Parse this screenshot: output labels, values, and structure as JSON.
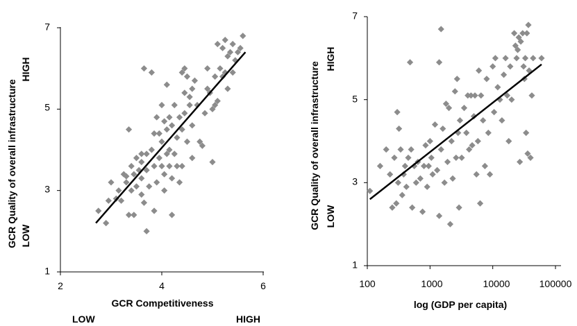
{
  "chart_data": [
    {
      "type": "scatter",
      "xlabel": "GCR Competitiveness",
      "xlabel_low": "LOW",
      "xlabel_high": "HIGH",
      "ylabel": "GCR Quality of overall infrastructure",
      "ylabel_low": "LOW",
      "ylabel_high": "HIGH",
      "xlim": [
        2,
        6
      ],
      "ylim": [
        1,
        7
      ],
      "xticks": [
        "2",
        "4",
        "6"
      ],
      "yticks": [
        "1",
        "3",
        "5",
        "7"
      ],
      "grid": false,
      "marker_color": "#8c8c8c",
      "trendline": {
        "x": [
          2.7,
          5.65
        ],
        "y": [
          2.2,
          6.4
        ]
      },
      "points": [
        [
          2.75,
          2.5
        ],
        [
          2.9,
          2.2
        ],
        [
          2.95,
          2.75
        ],
        [
          3.0,
          3.2
        ],
        [
          3.1,
          2.8
        ],
        [
          3.15,
          3.0
        ],
        [
          3.2,
          2.75
        ],
        [
          3.25,
          3.4
        ],
        [
          3.3,
          3.2
        ],
        [
          3.3,
          3.35
        ],
        [
          3.35,
          2.4
        ],
        [
          3.35,
          4.5
        ],
        [
          3.4,
          3.0
        ],
        [
          3.4,
          3.6
        ],
        [
          3.45,
          2.4
        ],
        [
          3.45,
          3.4
        ],
        [
          3.5,
          3.1
        ],
        [
          3.5,
          3.8
        ],
        [
          3.55,
          3.5
        ],
        [
          3.6,
          3.3
        ],
        [
          3.6,
          3.7
        ],
        [
          3.6,
          2.9
        ],
        [
          3.65,
          6.0
        ],
        [
          3.65,
          2.7
        ],
        [
          3.7,
          2.0
        ],
        [
          3.7,
          3.9
        ],
        [
          3.7,
          3.5
        ],
        [
          3.75,
          3.1
        ],
        [
          3.8,
          5.9
        ],
        [
          3.8,
          4.0
        ],
        [
          3.85,
          2.5
        ],
        [
          3.85,
          4.4
        ],
        [
          3.85,
          3.6
        ],
        [
          3.9,
          3.2
        ],
        [
          3.9,
          4.8
        ],
        [
          3.95,
          3.8
        ],
        [
          4.0,
          5.1
        ],
        [
          4.0,
          3.6
        ],
        [
          4.0,
          4.2
        ],
        [
          4.05,
          4.7
        ],
        [
          4.05,
          3.0
        ],
        [
          4.1,
          4.5
        ],
        [
          4.1,
          3.9
        ],
        [
          4.1,
          5.6
        ],
        [
          4.15,
          3.6
        ],
        [
          4.15,
          4.0
        ],
        [
          4.2,
          2.4
        ],
        [
          4.2,
          3.3
        ],
        [
          4.2,
          4.6
        ],
        [
          4.25,
          5.1
        ],
        [
          4.25,
          3.9
        ],
        [
          4.3,
          3.6
        ],
        [
          4.3,
          4.3
        ],
        [
          4.35,
          4.8
        ],
        [
          4.35,
          3.2
        ],
        [
          4.4,
          4.5
        ],
        [
          4.4,
          5.9
        ],
        [
          4.4,
          3.6
        ],
        [
          4.45,
          6.0
        ],
        [
          4.45,
          4.9
        ],
        [
          4.5,
          5.8
        ],
        [
          4.5,
          4.2
        ],
        [
          4.55,
          5.3
        ],
        [
          4.55,
          5.1
        ],
        [
          4.6,
          5.5
        ],
        [
          4.6,
          3.8
        ],
        [
          4.65,
          5.7
        ],
        [
          4.7,
          5.1
        ],
        [
          4.75,
          4.2
        ],
        [
          4.8,
          4.1
        ],
        [
          4.85,
          4.9
        ],
        [
          4.9,
          5.5
        ],
        [
          4.9,
          6.0
        ],
        [
          4.95,
          5.4
        ],
        [
          5.0,
          3.7
        ],
        [
          5.0,
          5.0
        ],
        [
          5.05,
          5.8
        ],
        [
          5.05,
          5.1
        ],
        [
          5.1,
          6.6
        ],
        [
          5.1,
          5.2
        ],
        [
          5.15,
          6.0
        ],
        [
          5.2,
          6.5
        ],
        [
          5.2,
          5.8
        ],
        [
          5.25,
          6.7
        ],
        [
          5.3,
          6.3
        ],
        [
          5.3,
          5.5
        ],
        [
          5.35,
          6.4
        ],
        [
          5.4,
          5.9
        ],
        [
          5.4,
          6.6
        ],
        [
          5.45,
          6.2
        ],
        [
          5.5,
          6.4
        ],
        [
          5.55,
          6.5
        ],
        [
          5.6,
          6.8
        ],
        [
          5.25,
          5.9
        ],
        [
          4.45,
          5.4
        ],
        [
          3.95,
          4.4
        ],
        [
          4.15,
          4.8
        ],
        [
          3.6,
          3.9
        ],
        [
          4.6,
          4.6
        ],
        [
          4.05,
          3.4
        ]
      ]
    },
    {
      "type": "scatter",
      "x_scale": "log",
      "xlabel": "log (GDP per capita)",
      "ylabel": "GCR Quality of overall infrastructure",
      "ylabel_low": "LOW",
      "ylabel_high": "HIGH",
      "xlim": [
        100,
        100000
      ],
      "ylim": [
        1,
        7
      ],
      "xticks": [
        "100",
        "1000",
        "10000",
        "100000"
      ],
      "yticks": [
        "1",
        "3",
        "5",
        "7"
      ],
      "grid": false,
      "marker_color": "#8c8c8c",
      "trendline": {
        "x": [
          110,
          60000
        ],
        "y": [
          2.6,
          5.85
        ]
      },
      "points": [
        [
          110,
          2.8
        ],
        [
          160,
          3.4
        ],
        [
          200,
          3.8
        ],
        [
          230,
          3.2
        ],
        [
          250,
          2.4
        ],
        [
          270,
          3.6
        ],
        [
          290,
          2.5
        ],
        [
          300,
          4.7
        ],
        [
          310,
          3.0
        ],
        [
          320,
          4.3
        ],
        [
          340,
          3.8
        ],
        [
          360,
          2.7
        ],
        [
          380,
          3.2
        ],
        [
          400,
          3.4
        ],
        [
          420,
          2.9
        ],
        [
          450,
          3.6
        ],
        [
          480,
          5.9
        ],
        [
          500,
          3.8
        ],
        [
          520,
          2.4
        ],
        [
          560,
          3.4
        ],
        [
          600,
          3.0
        ],
        [
          640,
          3.5
        ],
        [
          700,
          3.1
        ],
        [
          760,
          2.3
        ],
        [
          800,
          3.4
        ],
        [
          850,
          3.9
        ],
        [
          900,
          2.9
        ],
        [
          950,
          3.4
        ],
        [
          1000,
          4.0
        ],
        [
          1050,
          3.6
        ],
        [
          1100,
          3.2
        ],
        [
          1200,
          4.4
        ],
        [
          1300,
          3.3
        ],
        [
          1400,
          5.9
        ],
        [
          1400,
          2.2
        ],
        [
          1500,
          6.7
        ],
        [
          1500,
          3.8
        ],
        [
          1600,
          4.3
        ],
        [
          1700,
          3.0
        ],
        [
          1800,
          4.9
        ],
        [
          1900,
          3.5
        ],
        [
          2000,
          4.8
        ],
        [
          2100,
          2.0
        ],
        [
          2200,
          4.0
        ],
        [
          2300,
          3.1
        ],
        [
          2500,
          5.2
        ],
        [
          2600,
          3.6
        ],
        [
          2700,
          5.5
        ],
        [
          2800,
          4.2
        ],
        [
          2900,
          2.4
        ],
        [
          3000,
          4.5
        ],
        [
          3200,
          3.6
        ],
        [
          3500,
          4.8
        ],
        [
          3800,
          4.2
        ],
        [
          4000,
          5.1
        ],
        [
          4200,
          3.8
        ],
        [
          4500,
          5.1
        ],
        [
          4700,
          3.9
        ],
        [
          5000,
          4.6
        ],
        [
          5200,
          5.1
        ],
        [
          5500,
          3.2
        ],
        [
          5800,
          4.0
        ],
        [
          6000,
          5.7
        ],
        [
          6300,
          2.5
        ],
        [
          6500,
          5.1
        ],
        [
          7000,
          4.5
        ],
        [
          7500,
          3.4
        ],
        [
          8000,
          5.5
        ],
        [
          8500,
          4.2
        ],
        [
          9000,
          3.2
        ],
        [
          10000,
          5.8
        ],
        [
          10500,
          4.7
        ],
        [
          11000,
          6.0
        ],
        [
          12000,
          5.3
        ],
        [
          13000,
          5.0
        ],
        [
          14000,
          4.5
        ],
        [
          15000,
          5.6
        ],
        [
          16000,
          6.0
        ],
        [
          17000,
          5.1
        ],
        [
          18000,
          4.0
        ],
        [
          19000,
          5.8
        ],
        [
          20000,
          5.0
        ],
        [
          22000,
          6.6
        ],
        [
          23000,
          6.3
        ],
        [
          24000,
          6.0
        ],
        [
          25000,
          6.2
        ],
        [
          26000,
          6.5
        ],
        [
          27000,
          3.5
        ],
        [
          28000,
          6.4
        ],
        [
          30000,
          6.6
        ],
        [
          31000,
          5.8
        ],
        [
          32000,
          5.5
        ],
        [
          33000,
          6.0
        ],
        [
          34000,
          4.2
        ],
        [
          35000,
          6.6
        ],
        [
          36000,
          3.7
        ],
        [
          37000,
          6.8
        ],
        [
          38000,
          5.7
        ],
        [
          40000,
          3.6
        ],
        [
          42000,
          5.1
        ],
        [
          44000,
          6.0
        ],
        [
          60000,
          6.0
        ]
      ]
    }
  ]
}
